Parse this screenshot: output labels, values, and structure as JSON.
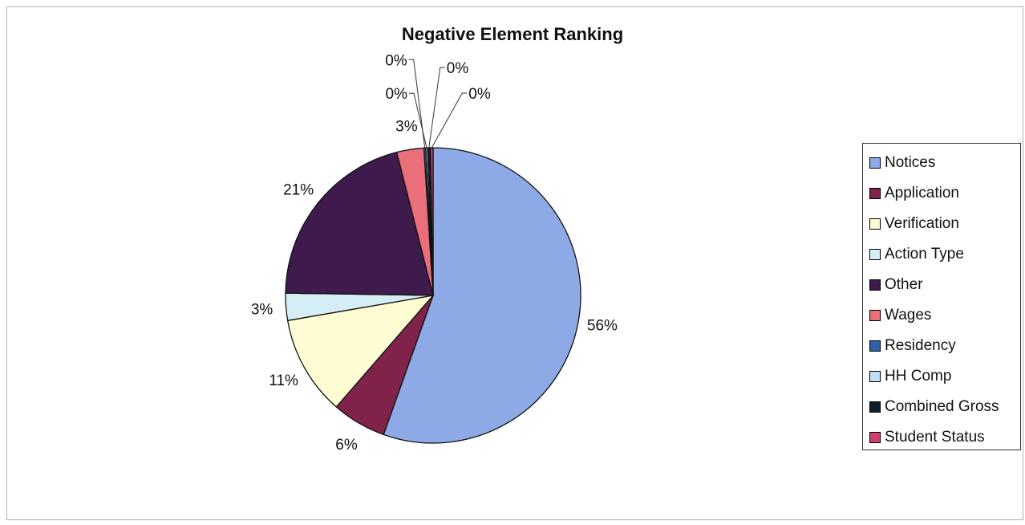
{
  "chart_data": {
    "type": "pie",
    "title": "Negative Element Ranking",
    "categories": [
      "Notices",
      "Application",
      "Verification",
      "Action Type",
      "Other",
      "Wages",
      "Residency",
      "HH Comp",
      "Combined Gross",
      "Student Status"
    ],
    "values": [
      56,
      6,
      11,
      3,
      21,
      3,
      0.2,
      0.2,
      0.3,
      0.3
    ],
    "value_labels": [
      "56%",
      "6%",
      "11%",
      "3%",
      "21%",
      "3%",
      "0%",
      "0%",
      "0%",
      "0%"
    ],
    "colors": [
      "#8eaae6",
      "#80234a",
      "#fdfcd2",
      "#d5eef6",
      "#3e1b4c",
      "#ea6f7b",
      "#2f5fa5",
      "#bfe0f4",
      "#0f1f2a",
      "#cf3e6e"
    ],
    "legend_position": "right",
    "start_angle_deg": 0,
    "direction": "clockwise"
  }
}
